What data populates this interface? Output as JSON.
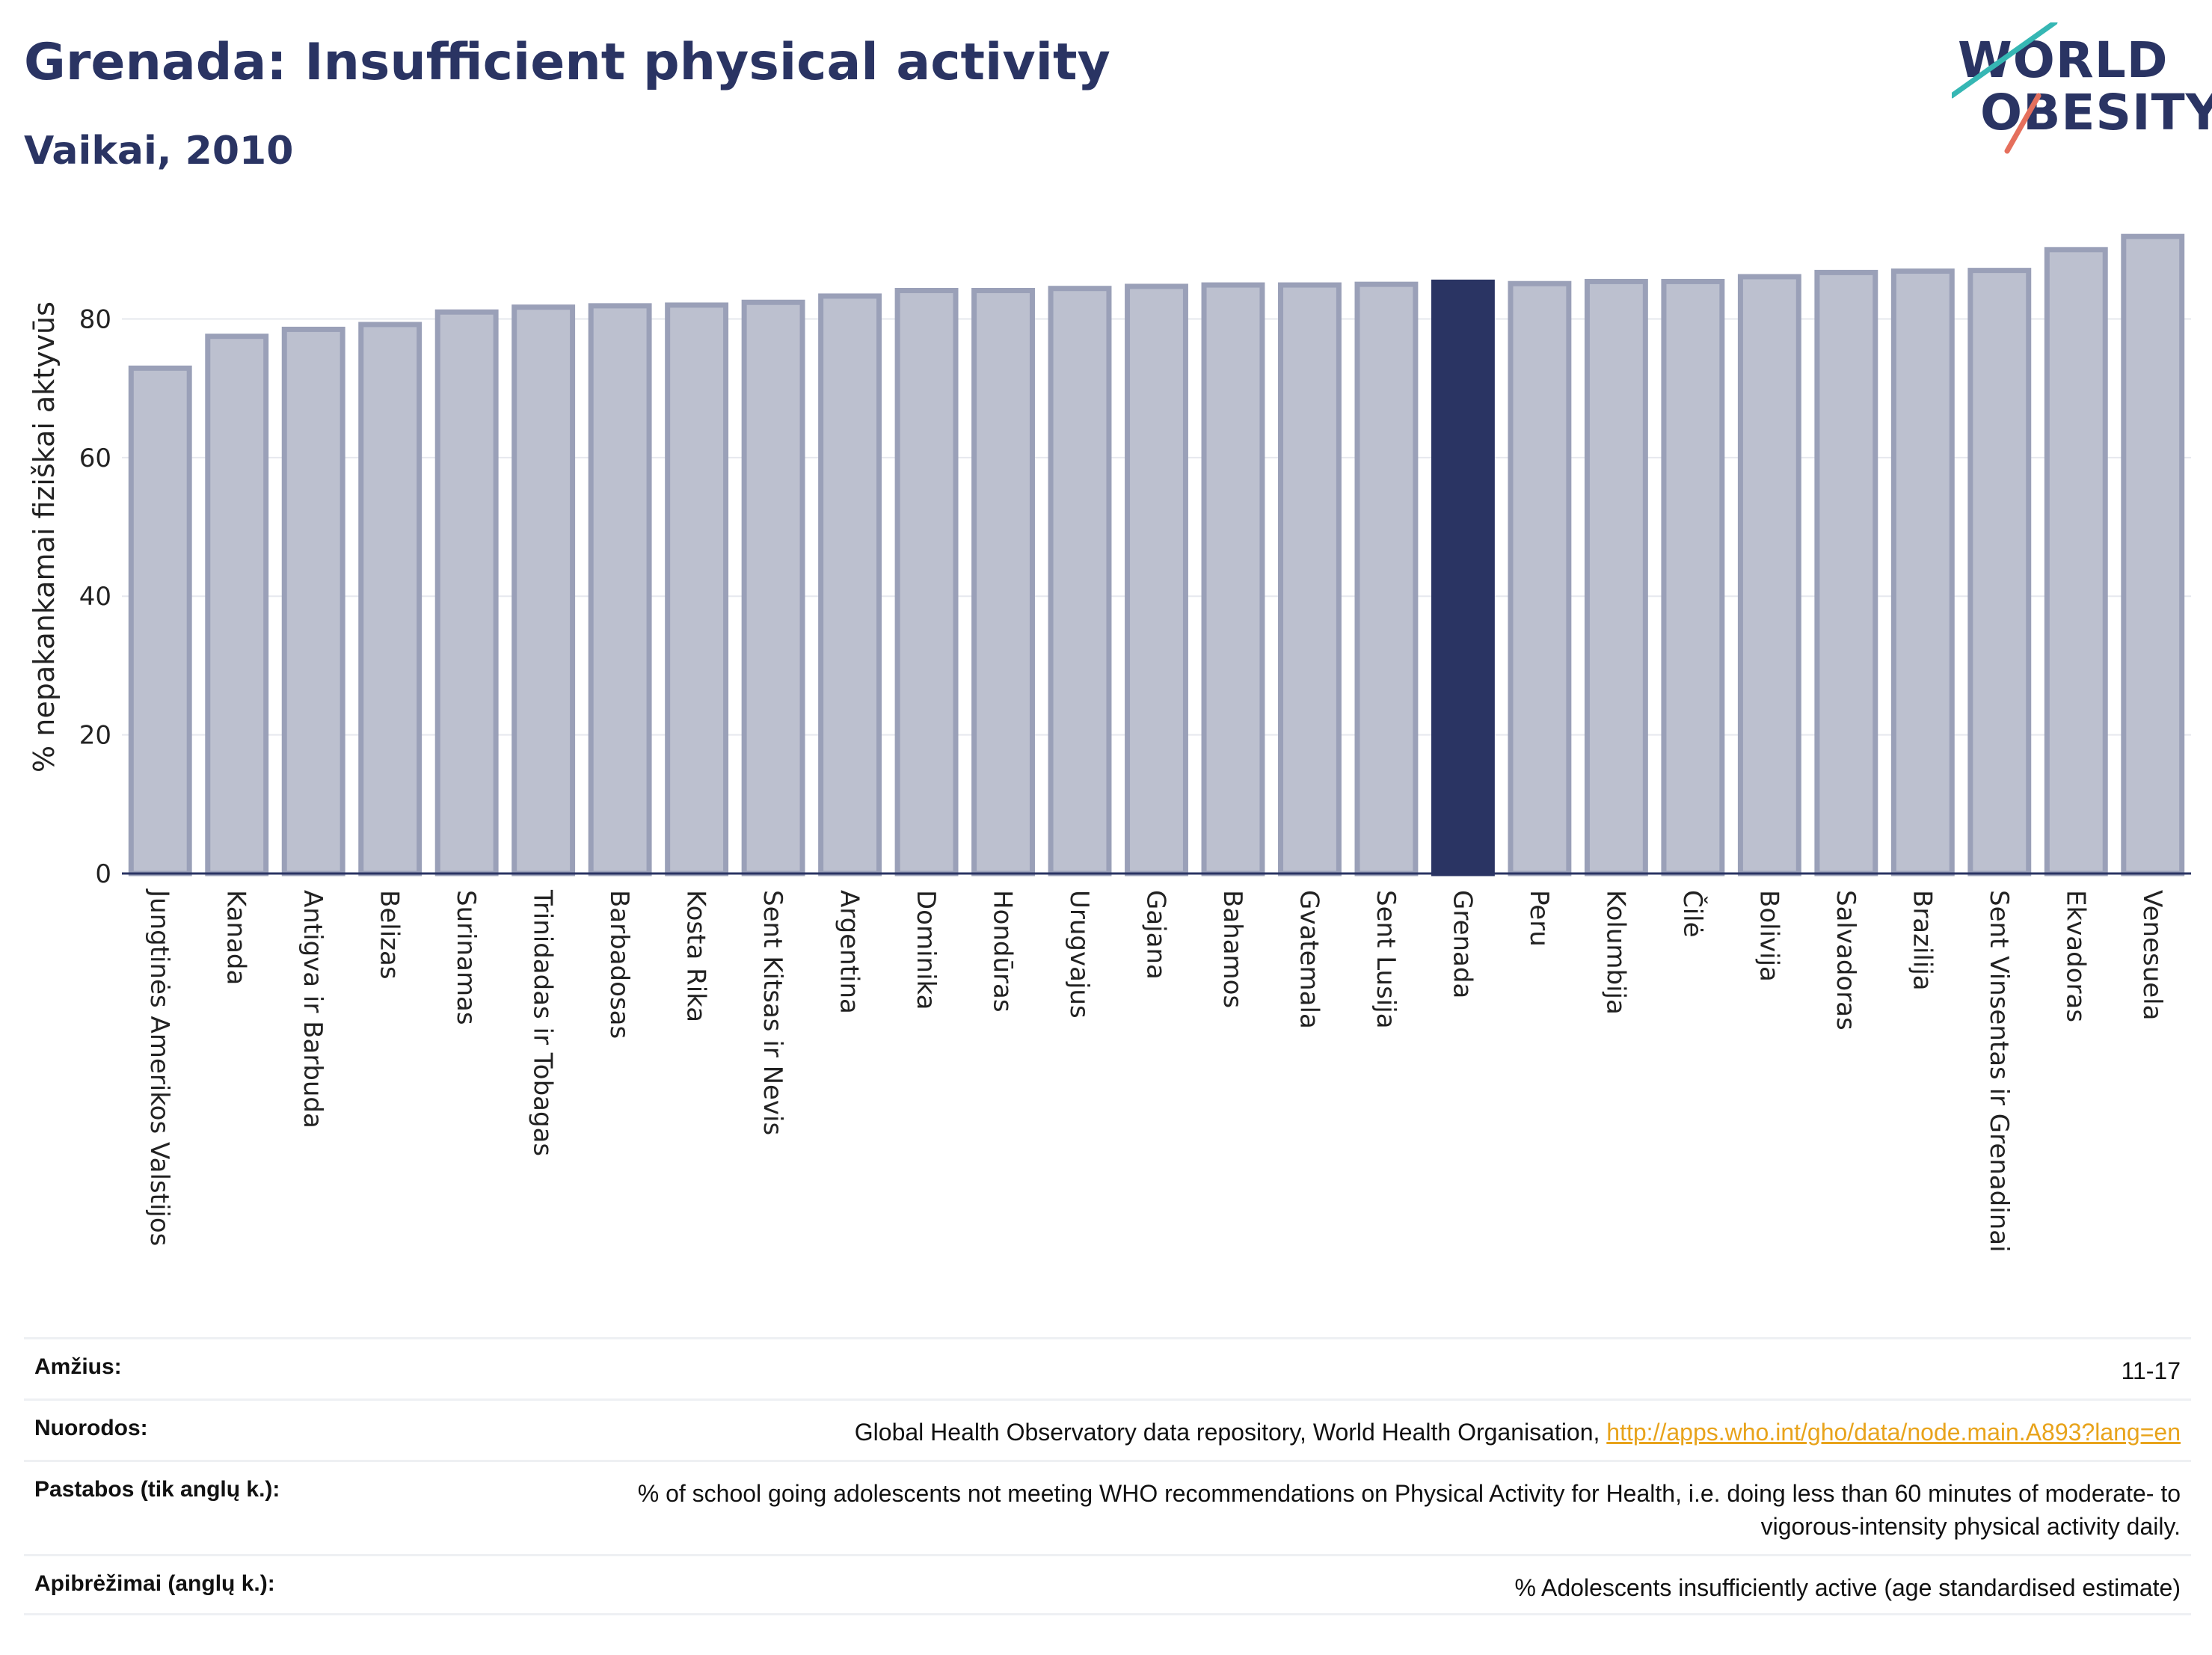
{
  "header": {
    "title": "Grenada: Insufficient physical activity",
    "subtitle": "Vaikai, 2010"
  },
  "logo": {
    "line1": "WORLD",
    "line2": "OBESITY"
  },
  "colors": {
    "bar_default": "#bcc0cf",
    "bar_default_border": "#9aa0b8",
    "bar_highlight": "#2a3463",
    "text": "#2a3463",
    "link": "#e8a31b"
  },
  "chart_data": {
    "type": "bar",
    "title": "Grenada: Insufficient physical activity",
    "subtitle": "Vaikai, 2010",
    "ylabel": "% nepakankamai fiziškai aktyvūs",
    "xlabel": "",
    "ylim": [
      0,
      93
    ],
    "yticks": [
      0,
      20,
      40,
      60,
      80
    ],
    "grid": true,
    "highlight": "Grenada",
    "categories": [
      "Jungtinės Amerikos Valstijos",
      "Kanada",
      "Antigva ir Barbuda",
      "Belizas",
      "Surinamas",
      "Trinidadas ir Tobagas",
      "Barbadosas",
      "Kosta Rika",
      "Sent Kitsas ir Nevis",
      "Argentina",
      "Dominika",
      "Hondūras",
      "Urugvajus",
      "Gajana",
      "Bahamos",
      "Gvatemala",
      "Sent Lusija",
      "Grenada",
      "Peru",
      "Kolumbija",
      "Čilė",
      "Bolivija",
      "Salvadoras",
      "Brazilija",
      "Sent Vinsentas ir Grenadinai",
      "Ekvadoras",
      "Venesuela"
    ],
    "values": [
      72.9,
      77.5,
      78.5,
      79.2,
      81.0,
      81.7,
      81.9,
      82.0,
      82.4,
      83.3,
      84.1,
      84.1,
      84.4,
      84.7,
      84.9,
      84.9,
      85.0,
      85.3,
      85.1,
      85.4,
      85.4,
      86.1,
      86.7,
      86.9,
      87.0,
      90.0,
      91.9
    ]
  },
  "info": [
    {
      "label": "Amžius:",
      "value": "11-17"
    },
    {
      "label": "Nuorodos:",
      "value": "Global Health Observatory data repository, World Health Organisation,",
      "link": "http://apps.who.int/gho/data/node.main.A893?lang=en"
    },
    {
      "label": "Pastabos (tik anglų k.):",
      "value": "% of school going adolescents not meeting WHO recommendations on Physical Activity for Health, i.e. doing less than 60 minutes of moderate- to vigorous-intensity physical activity daily."
    },
    {
      "label": "Apibrėžimai (anglų k.):",
      "value": "% Adolescents insufficiently active (age standardised estimate)"
    }
  ]
}
